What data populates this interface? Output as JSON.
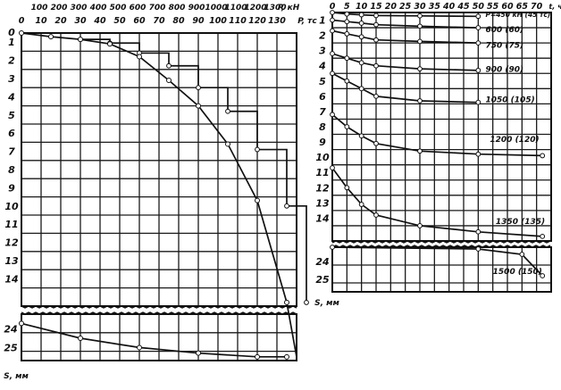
{
  "chart_data": [
    {
      "type": "line",
      "title": "",
      "xlabel_top": "P, кН",
      "xlabel_bottom": "P, тс",
      "ylabel": "S, мм",
      "x_top_ticks": [
        "100",
        "200",
        "300",
        "400",
        "500",
        "600",
        "700",
        "800",
        "900",
        "1000",
        "1100",
        "1200",
        "1300"
      ],
      "x_bottom_ticks": [
        "0",
        "10",
        "20",
        "30",
        "40",
        "50",
        "60",
        "70",
        "80",
        "90",
        "100",
        "110",
        "120",
        "130"
      ],
      "y_ticks_upper": [
        "0",
        "1",
        "2",
        "3",
        "4",
        "5",
        "6",
        "7",
        "8",
        "9",
        "10",
        "11",
        "12",
        "13",
        "14"
      ],
      "y_ticks_lower": [
        "24",
        "25"
      ],
      "series": [
        {
          "values": [
            [
              0,
              0
            ],
            [
              15,
              0.2
            ],
            [
              30,
              0.35
            ],
            [
              45,
              0.6
            ],
            [
              60,
              1.3
            ],
            [
              75,
              2.6
            ],
            [
              90,
              4.0
            ],
            [
              105,
              6.1
            ],
            [
              120,
              9.2
            ],
            [
              135,
              14.8
            ]
          ]
        },
        {
          "values": [
            [
              0,
              23.5
            ],
            [
              30,
              24.3
            ],
            [
              60,
              24.8
            ],
            [
              90,
              25.1
            ],
            [
              120,
              25.3
            ],
            [
              135,
              25.3
            ]
          ]
        }
      ],
      "settlement_steps": [
        [
          30,
          0.35
        ],
        [
          45,
          0.55
        ],
        [
          60,
          1.1
        ],
        [
          75,
          1.8
        ],
        [
          90,
          3.0
        ],
        [
          105,
          4.3
        ],
        [
          120,
          6.4
        ],
        [
          135,
          9.5
        ],
        [
          145,
          14.8
        ]
      ]
    },
    {
      "type": "line",
      "title": "",
      "xlabel": "t, ч",
      "ylabel": "S, мм",
      "x_ticks": [
        "0",
        "5",
        "10",
        "15",
        "20",
        "25",
        "30",
        "35",
        "40",
        "45",
        "50",
        "55",
        "60",
        "65",
        "70"
      ],
      "y_ticks_upper": [
        "0",
        "1",
        "2",
        "3",
        "4",
        "5",
        "6",
        "7",
        "8",
        "9",
        "10",
        "11",
        "12",
        "13",
        "14"
      ],
      "y_ticks_lower": [
        "24",
        "25"
      ],
      "load_labels": [
        "P=450 кН (45 тс)",
        "600 (60)",
        "750 (75)",
        "900 (90)",
        "1050 (105)",
        "1200 (120)",
        "1350 (135)",
        "1500 (150)"
      ],
      "series": [
        {
          "name": "P=450 кН (45 тс)",
          "values": [
            [
              0,
              0
            ],
            [
              5,
              0.1
            ],
            [
              10,
              0.15
            ],
            [
              15,
              0.2
            ],
            [
              30,
              0.22
            ],
            [
              50,
              0.25
            ]
          ]
        },
        {
          "name": "600 (60)",
          "values": [
            [
              0,
              0.5
            ],
            [
              5,
              0.6
            ],
            [
              10,
              0.7
            ],
            [
              15,
              0.8
            ],
            [
              30,
              0.9
            ],
            [
              50,
              1.0
            ]
          ]
        },
        {
          "name": "750 (75)",
          "values": [
            [
              0,
              1.2
            ],
            [
              5,
              1.4
            ],
            [
              10,
              1.6
            ],
            [
              15,
              1.8
            ],
            [
              30,
              1.9
            ],
            [
              50,
              2.0
            ]
          ]
        },
        {
          "name": "900 (90)",
          "values": [
            [
              0,
              2.7
            ],
            [
              5,
              3.0
            ],
            [
              10,
              3.3
            ],
            [
              15,
              3.5
            ],
            [
              30,
              3.7
            ],
            [
              50,
              3.8
            ]
          ]
        },
        {
          "name": "1050 (105)",
          "values": [
            [
              0,
              4.0
            ],
            [
              5,
              4.5
            ],
            [
              10,
              5.0
            ],
            [
              15,
              5.5
            ],
            [
              30,
              5.8
            ],
            [
              50,
              5.9
            ]
          ]
        },
        {
          "name": "1200 (120)",
          "values": [
            [
              0,
              6.7
            ],
            [
              5,
              7.5
            ],
            [
              10,
              8.1
            ],
            [
              15,
              8.6
            ],
            [
              30,
              9.1
            ],
            [
              50,
              9.3
            ],
            [
              72,
              9.4
            ]
          ]
        },
        {
          "name": "1350 (135)",
          "values": [
            [
              0,
              10.2
            ],
            [
              5,
              11.5
            ],
            [
              10,
              12.6
            ],
            [
              15,
              13.3
            ],
            [
              30,
              14.0
            ],
            [
              50,
              14.4
            ],
            [
              72,
              14.7
            ]
          ]
        },
        {
          "name": "1500 (150)",
          "values": [
            [
              0,
              23.0
            ],
            [
              50,
              23.1
            ],
            [
              65,
              23.4
            ],
            [
              72,
              24.6
            ]
          ]
        }
      ]
    }
  ]
}
